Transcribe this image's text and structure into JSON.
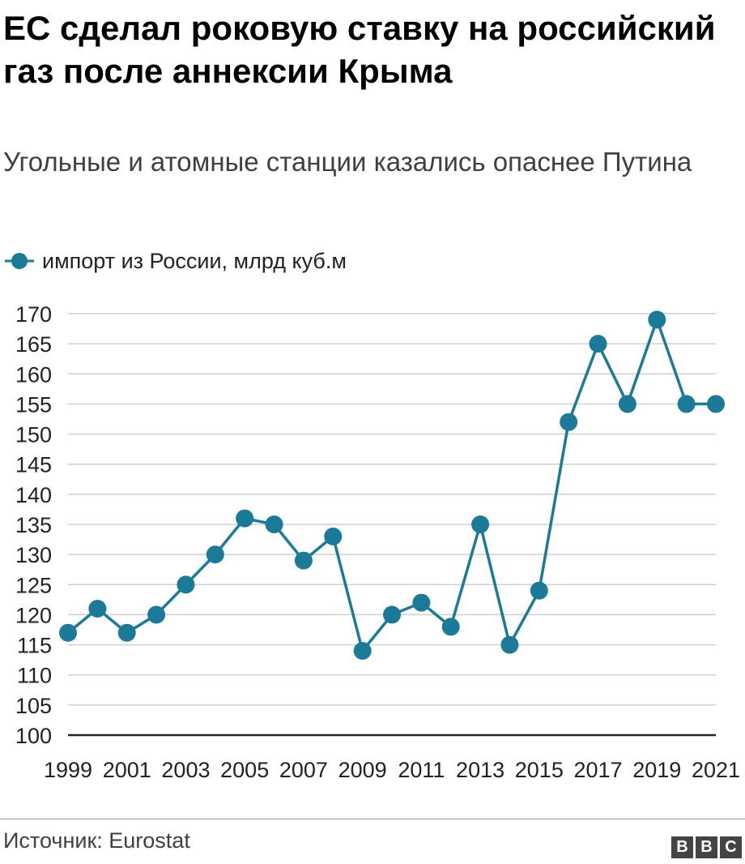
{
  "title": "ЕС сделал роковую ставку на российский газ после аннексии Крыма",
  "subtitle": "Угольные и атомные станции казались опаснее Путина",
  "legend": {
    "label": "импорт из России, млрд куб.м"
  },
  "source": "Источник: Eurostat",
  "logo": {
    "letters": [
      "B",
      "B",
      "C"
    ]
  },
  "colors": {
    "series": "#1c7a99",
    "grid": "#d0d0d0",
    "axis": "#222222",
    "logo": "#444444"
  },
  "chart_data": {
    "type": "line",
    "title": "ЕС сделал роковую ставку на российский газ после аннексии Крыма",
    "subtitle": "Угольные и атомные станции казались опаснее Путина",
    "xlabel": "",
    "ylabel": "",
    "x": [
      1999,
      2000,
      2001,
      2002,
      2003,
      2004,
      2005,
      2006,
      2007,
      2008,
      2009,
      2010,
      2011,
      2012,
      2013,
      2014,
      2015,
      2016,
      2017,
      2018,
      2019,
      2020,
      2021
    ],
    "x_tick_labels": [
      "1999",
      "2001",
      "2003",
      "2005",
      "2007",
      "2009",
      "2011",
      "2013",
      "2015",
      "2017",
      "2019",
      "2021"
    ],
    "series": [
      {
        "name": "импорт из России, млрд куб.м",
        "values": [
          117,
          121,
          117,
          120,
          125,
          130,
          136,
          135,
          129,
          133,
          114,
          120,
          122,
          118,
          135,
          115,
          124,
          152,
          165,
          155,
          169,
          155,
          155
        ]
      }
    ],
    "ylim": [
      100,
      170
    ],
    "y_ticks": [
      100,
      105,
      110,
      115,
      120,
      125,
      130,
      135,
      140,
      145,
      150,
      155,
      160,
      165,
      170
    ],
    "grid": true,
    "legend_position": "top-left"
  }
}
